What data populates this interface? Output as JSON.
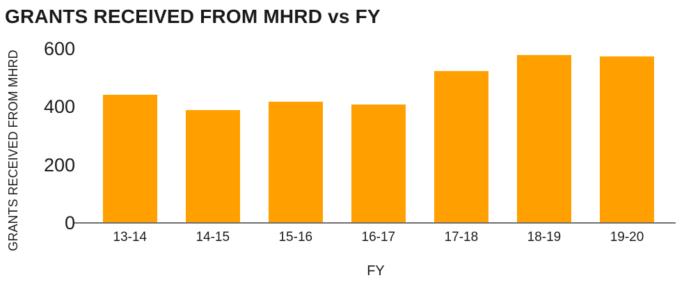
{
  "title": "GRANTS RECEIVED FROM MHRD vs FY",
  "colors": {
    "bar": "#FFA000",
    "axis_line": "#6e6e6e",
    "text": "#1a1a1a",
    "background": "#ffffff"
  },
  "chart_data": {
    "type": "bar",
    "title": "GRANTS RECEIVED FROM MHRD vs FY",
    "categories": [
      "13-14",
      "14-15",
      "15-16",
      "16-17",
      "17-18",
      "18-19",
      "19-20"
    ],
    "values": [
      445,
      390,
      420,
      410,
      525,
      580,
      575
    ],
    "xlabel": "FY",
    "ylabel": "GRANTS RECEIVED FROM MHRD",
    "ylim": [
      0,
      600
    ],
    "yticks": [
      0,
      200,
      400,
      600
    ],
    "grid": false,
    "legend": false,
    "bar_color": "#FFA000"
  }
}
